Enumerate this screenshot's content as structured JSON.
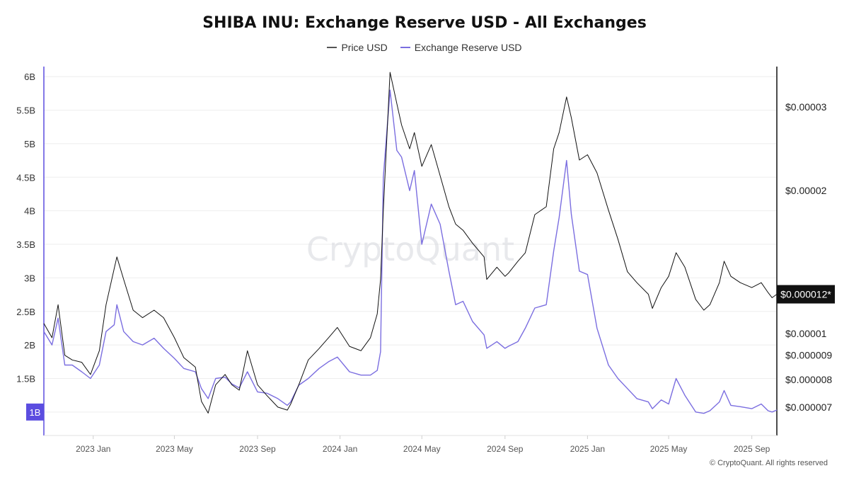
{
  "title": "SHIBA INU: Exchange Reserve USD - All Exchanges",
  "watermark": "CryptoQuant",
  "copyright": "© CryptoQuant. All rights reserved",
  "colors": {
    "price": "#111111",
    "reserve": "#7b6ee0",
    "accent": "#5b4de0",
    "grid": "#eeeeee"
  },
  "legend": [
    {
      "label": "Price USD",
      "color": "#555555"
    },
    {
      "label": "Exchange Reserve USD",
      "color": "#7b6ee0"
    }
  ],
  "current_price_label": "$0.000012*",
  "current_reserve_label": "1B",
  "chart_data": {
    "type": "line",
    "title": "SHIBA INU: Exchange Reserve USD - All Exchanges",
    "x_range": [
      "2022-10-20",
      "2025-10-08"
    ],
    "x_ticks": [
      "2023 Jan",
      "2023 May",
      "2023 Sep",
      "2024 Jan",
      "2024 May",
      "2024 Sep",
      "2025 Jan",
      "2025 May",
      "2025 Sep"
    ],
    "x_tick_dates": [
      "2023-01-01",
      "2023-05-01",
      "2023-09-01",
      "2024-01-01",
      "2024-05-01",
      "2024-09-01",
      "2025-01-01",
      "2025-05-01",
      "2025-09-01"
    ],
    "y_left": {
      "label": "Exchange Reserve USD",
      "ticks": [
        "1B",
        "1.5B",
        "2B",
        "2.5B",
        "3B",
        "3.5B",
        "4B",
        "4.5B",
        "5B",
        "5.5B",
        "6B"
      ],
      "range": [
        0.65,
        6.15
      ]
    },
    "y_right": {
      "label": "Price USD",
      "ticks": [
        "$0.000007",
        "$0.000008",
        "$0.000009",
        "$0.00001",
        "$0.00002",
        "$0.00003"
      ],
      "tick_values": [
        7e-06,
        8e-06,
        9e-06,
        1e-05,
        2e-05,
        3e-05
      ],
      "scale": "log",
      "range": [
        6.1e-06,
        3.65e-05
      ]
    },
    "grid": true,
    "legend_position": "top-center",
    "series": [
      {
        "name": "Price USD",
        "axis": "right",
        "x": [
          "2022-10-20",
          "2022-11-01",
          "2022-11-10",
          "2022-11-20",
          "2022-12-01",
          "2022-12-15",
          "2022-12-28",
          "2023-01-10",
          "2023-01-20",
          "2023-02-01",
          "2023-02-05",
          "2023-02-15",
          "2023-03-01",
          "2023-03-15",
          "2023-04-01",
          "2023-04-15",
          "2023-05-01",
          "2023-05-15",
          "2023-06-01",
          "2023-06-10",
          "2023-06-20",
          "2023-07-01",
          "2023-07-15",
          "2023-07-25",
          "2023-08-05",
          "2023-08-17",
          "2023-09-01",
          "2023-09-15",
          "2023-10-01",
          "2023-10-15",
          "2023-10-20",
          "2023-11-01",
          "2023-11-15",
          "2023-12-01",
          "2023-12-15",
          "2023-12-28",
          "2024-01-15",
          "2024-02-01",
          "2024-02-15",
          "2024-02-25",
          "2024-03-01",
          "2024-03-05",
          "2024-03-15",
          "2024-03-25",
          "2024-04-01",
          "2024-04-13",
          "2024-04-20",
          "2024-05-01",
          "2024-05-15",
          "2024-05-28",
          "2024-06-10",
          "2024-06-20",
          "2024-07-01",
          "2024-07-15",
          "2024-08-01",
          "2024-08-05",
          "2024-08-20",
          "2024-09-01",
          "2024-09-06",
          "2024-09-20",
          "2024-10-01",
          "2024-10-15",
          "2024-11-01",
          "2024-11-12",
          "2024-11-20",
          "2024-12-01",
          "2024-12-08",
          "2024-12-20",
          "2025-01-01",
          "2025-01-15",
          "2025-02-01",
          "2025-02-15",
          "2025-03-01",
          "2025-03-15",
          "2025-04-01",
          "2025-04-07",
          "2025-04-20",
          "2025-05-01",
          "2025-05-12",
          "2025-05-25",
          "2025-06-10",
          "2025-06-22",
          "2025-07-01",
          "2025-07-15",
          "2025-07-22",
          "2025-08-01",
          "2025-08-15",
          "2025-09-01",
          "2025-09-15",
          "2025-09-25",
          "2025-10-01",
          "2025-10-08"
        ],
        "y": [
          1.05e-05,
          9.8e-06,
          1.15e-05,
          9e-06,
          8.8e-06,
          8.7e-06,
          8.2e-06,
          9.2e-06,
          1.15e-05,
          1.37e-05,
          1.45e-05,
          1.3e-05,
          1.12e-05,
          1.08e-05,
          1.12e-05,
          1.08e-05,
          9.8e-06,
          8.9e-06,
          8.5e-06,
          7.2e-06,
          6.8e-06,
          7.8e-06,
          8.2e-06,
          7.8e-06,
          7.6e-06,
          9.2e-06,
          7.8e-06,
          7.4e-06,
          7e-06,
          6.9e-06,
          7.1e-06,
          7.8e-06,
          8.8e-06,
          9.3e-06,
          9.8e-06,
          1.03e-05,
          9.4e-06,
          9.2e-06,
          9.8e-06,
          1.1e-05,
          1.3e-05,
          1.82e-05,
          3.55e-05,
          3.05e-05,
          2.75e-05,
          2.45e-05,
          2.65e-05,
          2.25e-05,
          2.5e-05,
          2.15e-05,
          1.85e-05,
          1.7e-05,
          1.65e-05,
          1.55e-05,
          1.45e-05,
          1.3e-05,
          1.38e-05,
          1.32e-05,
          1.34e-05,
          1.42e-05,
          1.48e-05,
          1.78e-05,
          1.85e-05,
          2.45e-05,
          2.65e-05,
          3.15e-05,
          2.85e-05,
          2.32e-05,
          2.38e-05,
          2.18e-05,
          1.82e-05,
          1.58e-05,
          1.35e-05,
          1.28e-05,
          1.21e-05,
          1.13e-05,
          1.25e-05,
          1.32e-05,
          1.48e-05,
          1.38e-05,
          1.18e-05,
          1.12e-05,
          1.15e-05,
          1.28e-05,
          1.42e-05,
          1.32e-05,
          1.28e-05,
          1.25e-05,
          1.28e-05,
          1.22e-05,
          1.19e-05,
          1.21e-05
        ]
      },
      {
        "name": "Exchange Reserve USD",
        "axis": "left",
        "x": [
          "2022-10-20",
          "2022-11-01",
          "2022-11-10",
          "2022-11-20",
          "2022-12-01",
          "2022-12-15",
          "2022-12-28",
          "2023-01-10",
          "2023-01-20",
          "2023-02-01",
          "2023-02-05",
          "2023-02-15",
          "2023-03-01",
          "2023-03-15",
          "2023-04-01",
          "2023-04-15",
          "2023-05-01",
          "2023-05-15",
          "2023-06-01",
          "2023-06-10",
          "2023-06-20",
          "2023-07-01",
          "2023-07-15",
          "2023-07-25",
          "2023-08-05",
          "2023-08-17",
          "2023-09-01",
          "2023-09-15",
          "2023-10-01",
          "2023-10-15",
          "2023-10-20",
          "2023-11-01",
          "2023-11-15",
          "2023-12-01",
          "2023-12-15",
          "2023-12-28",
          "2024-01-15",
          "2024-02-01",
          "2024-02-15",
          "2024-02-25",
          "2024-03-01",
          "2024-03-05",
          "2024-03-15",
          "2024-03-25",
          "2024-04-01",
          "2024-04-13",
          "2024-04-20",
          "2024-05-01",
          "2024-05-15",
          "2024-05-28",
          "2024-06-10",
          "2024-06-20",
          "2024-07-01",
          "2024-07-15",
          "2024-08-01",
          "2024-08-05",
          "2024-08-20",
          "2024-09-01",
          "2024-09-06",
          "2024-09-20",
          "2024-10-01",
          "2024-10-15",
          "2024-11-01",
          "2024-11-12",
          "2024-11-20",
          "2024-12-01",
          "2024-12-08",
          "2024-12-20",
          "2025-01-01",
          "2025-01-15",
          "2025-02-01",
          "2025-02-15",
          "2025-03-01",
          "2025-03-15",
          "2025-04-01",
          "2025-04-07",
          "2025-04-20",
          "2025-05-01",
          "2025-05-12",
          "2025-05-25",
          "2025-06-10",
          "2025-06-22",
          "2025-07-01",
          "2025-07-15",
          "2025-07-22",
          "2025-08-01",
          "2025-08-15",
          "2025-09-01",
          "2025-09-15",
          "2025-09-25",
          "2025-10-01",
          "2025-10-08"
        ],
        "y": [
          2.2,
          2.0,
          2.4,
          1.7,
          1.7,
          1.6,
          1.5,
          1.7,
          2.2,
          2.3,
          2.6,
          2.2,
          2.05,
          2.0,
          2.1,
          1.95,
          1.8,
          1.65,
          1.6,
          1.35,
          1.2,
          1.5,
          1.52,
          1.42,
          1.36,
          1.6,
          1.3,
          1.28,
          1.2,
          1.1,
          1.15,
          1.4,
          1.5,
          1.65,
          1.75,
          1.82,
          1.6,
          1.55,
          1.55,
          1.62,
          1.9,
          4.5,
          5.8,
          4.9,
          4.8,
          4.3,
          4.6,
          3.5,
          4.1,
          3.8,
          3.1,
          2.6,
          2.65,
          2.35,
          2.15,
          1.95,
          2.05,
          1.95,
          1.98,
          2.05,
          2.25,
          2.55,
          2.6,
          3.4,
          3.9,
          4.75,
          3.95,
          3.1,
          3.05,
          2.25,
          1.7,
          1.5,
          1.35,
          1.2,
          1.15,
          1.05,
          1.18,
          1.12,
          1.5,
          1.25,
          1.0,
          0.98,
          1.02,
          1.15,
          1.32,
          1.1,
          1.08,
          1.05,
          1.12,
          1.02,
          1.0,
          1.03
        ]
      }
    ]
  }
}
